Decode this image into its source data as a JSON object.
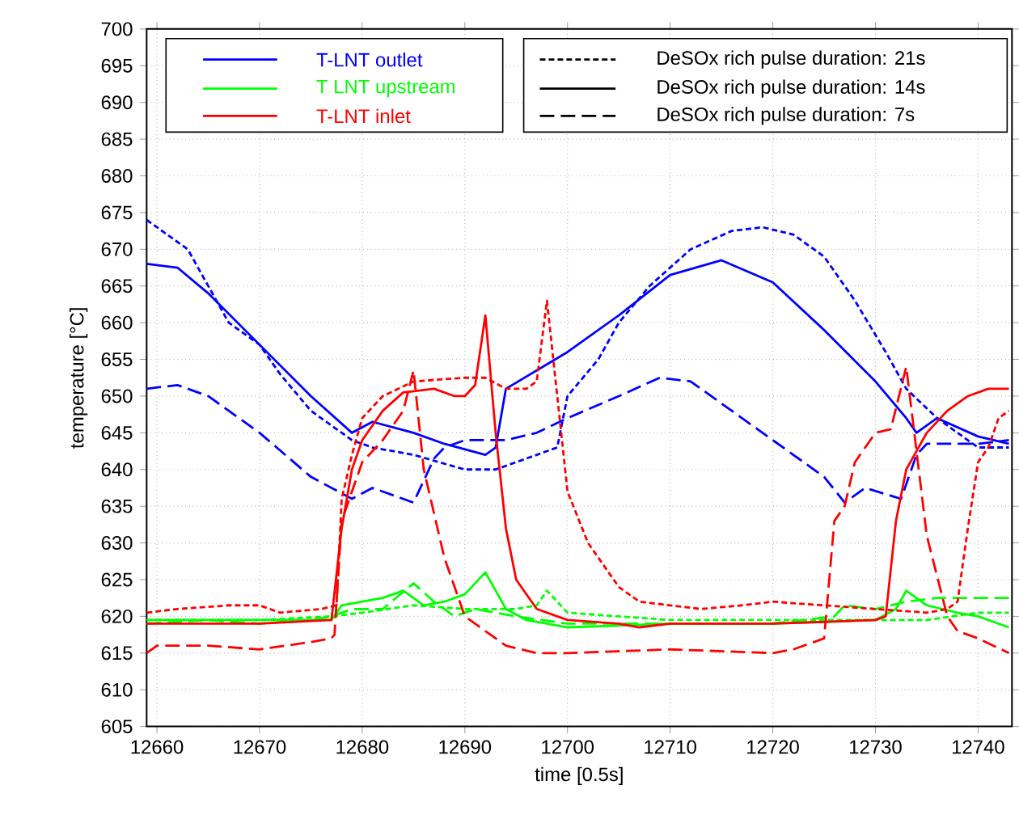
{
  "chart_data": {
    "type": "line",
    "xlabel": "time [0.5s]",
    "ylabel": "temperature [°C]",
    "xlim": [
      12659,
      12743.3
    ],
    "ylim": [
      605,
      700
    ],
    "xticks": [
      12660,
      12670,
      12680,
      12690,
      12700,
      12710,
      12720,
      12730,
      12740
    ],
    "yticks": [
      605,
      610,
      615,
      620,
      625,
      630,
      635,
      640,
      645,
      650,
      655,
      660,
      665,
      670,
      675,
      680,
      685,
      690,
      695,
      700
    ],
    "grid": true,
    "annotations": [
      "T-LNT outlet",
      "T LNT upstream",
      "T-LNT inlet",
      "DeSOx rich pulse duration: 21s",
      "DeSOx rich pulse duration: 14s",
      "DeSOx rich pulse duration: 7s"
    ],
    "series": [
      {
        "color": "#0000ff",
        "line_style": "dotted",
        "x": [
          12659,
          12661,
          12663,
          12665,
          12667,
          12670,
          12672,
          12675,
          12679,
          12681,
          12685,
          12690,
          12693,
          12695,
          12698,
          12699,
          12700,
          12703,
          12705,
          12708,
          12712,
          12716,
          12719,
          12722,
          12725,
          12728,
          12731,
          12733,
          12736,
          12738,
          12740,
          12743
        ],
        "values": [
          674,
          672,
          670,
          665,
          660,
          657,
          653,
          648,
          644,
          643,
          642,
          640,
          640,
          641,
          642.5,
          643,
          650,
          655,
          660,
          665,
          670,
          672.5,
          673,
          672,
          669,
          663,
          656,
          651,
          647,
          645,
          643,
          643
        ]
      },
      {
        "color": "#0000ff",
        "line_style": "solid",
        "x": [
          12659,
          12662,
          12665,
          12670,
          12675,
          12679,
          12681,
          12685,
          12688,
          12692,
          12693,
          12694,
          12700,
          12705,
          12710,
          12715,
          12720,
          12725,
          12730,
          12733,
          12734,
          12736,
          12740,
          12743
        ],
        "values": [
          668,
          667.5,
          664,
          657,
          650,
          645,
          646.5,
          645,
          643.5,
          642,
          643,
          651,
          656,
          661,
          666.5,
          668.5,
          665.5,
          659,
          652,
          647,
          645,
          647,
          644.5,
          643.5
        ]
      },
      {
        "color": "#0000ff",
        "line_style": "dashed",
        "x": [
          12659,
          12662,
          12665,
          12670,
          12675,
          12679,
          12681,
          12685,
          12687,
          12688,
          12690,
          12694,
          12697,
          12700,
          12705,
          12709,
          12712,
          12715,
          12720,
          12725,
          12727,
          12729,
          12732.5,
          12734,
          12735,
          12740,
          12743
        ],
        "values": [
          651,
          651.5,
          650,
          645,
          639,
          636,
          637.5,
          635.5,
          641.5,
          643,
          644,
          644,
          645,
          647,
          650,
          652.5,
          652,
          649,
          644,
          639,
          635.5,
          637.5,
          636,
          642,
          643.5,
          643.5,
          644
        ]
      },
      {
        "color": "#00ff00",
        "line_style": "dotted",
        "x": [
          12659,
          12670,
          12677,
          12680,
          12685,
          12690,
          12695,
          12697,
          12698,
          12700,
          12705,
          12710,
          12720,
          12730,
          12735,
          12740,
          12743
        ],
        "values": [
          619.5,
          619.5,
          620,
          620.5,
          621.5,
          621,
          621,
          621.5,
          623.5,
          620.5,
          620,
          619.5,
          619.5,
          619.5,
          619.5,
          620.5,
          620.5
        ]
      },
      {
        "color": "#00ff00",
        "line_style": "solid",
        "x": [
          12659,
          12665,
          12670,
          12677,
          12678,
          12680,
          12682,
          12684,
          12686,
          12688,
          12690,
          12692,
          12694,
          12696,
          12698,
          12700,
          12710,
          12720,
          12730,
          12732,
          12733,
          12735,
          12738,
          12740,
          12743
        ],
        "values": [
          619.5,
          619.5,
          619.5,
          619.5,
          621.5,
          622,
          622.5,
          623.5,
          621.5,
          622,
          623,
          626,
          621,
          619.5,
          619,
          618.5,
          619,
          619,
          619.5,
          621,
          623.5,
          621.5,
          620.5,
          620,
          618.5
        ]
      },
      {
        "color": "#00ff00",
        "line_style": "dashed",
        "x": [
          12659,
          12665,
          12670,
          12675,
          12677,
          12679,
          12682,
          12685,
          12687,
          12689,
          12691,
          12695,
          12700,
          12710,
          12720,
          12726,
          12727,
          12730,
          12733,
          12736,
          12740,
          12743
        ],
        "values": [
          619,
          619.5,
          619,
          619.5,
          620,
          621,
          621,
          624.5,
          622,
          620,
          621,
          620,
          619,
          619,
          619,
          620,
          621.5,
          621,
          622,
          622.5,
          622.5,
          622.5
        ]
      },
      {
        "color": "#ff0000",
        "line_style": "dotted",
        "x": [
          12659,
          12662,
          12667,
          12670,
          12672,
          12676,
          12677.5,
          12678,
          12679,
          12680,
          12682,
          12685,
          12690,
          12692,
          12694,
          12696,
          12697,
          12698,
          12699,
          12700,
          12702,
          12705,
          12707,
          12710,
          12713,
          12717,
          12720,
          12725,
          12730,
          12735,
          12737,
          12738,
          12739,
          12740,
          12741,
          12742,
          12743
        ],
        "values": [
          620.5,
          621,
          621.5,
          621.5,
          620.5,
          621,
          621.5,
          636,
          642,
          647,
          650,
          652,
          652.5,
          652.5,
          651,
          651,
          652,
          663,
          650,
          637,
          630,
          624,
          622,
          621.5,
          621,
          621.5,
          622,
          621.5,
          621,
          620.5,
          621,
          622,
          632,
          641,
          643,
          647,
          648
        ]
      },
      {
        "color": "#ff0000",
        "line_style": "solid",
        "x": [
          12659,
          12665,
          12670,
          12677,
          12678,
          12679,
          12680,
          12682,
          12684,
          12687,
          12689,
          12690,
          12691,
          12692,
          12693,
          12694,
          12695,
          12697,
          12700,
          12705,
          12707,
          12710,
          12720,
          12730,
          12731,
          12732,
          12733,
          12735,
          12737,
          12739,
          12741,
          12743
        ],
        "values": [
          619,
          619,
          619,
          619.5,
          632,
          640,
          644,
          648,
          650.5,
          651,
          650,
          650,
          651.5,
          661,
          645,
          632,
          625,
          621,
          619.5,
          619,
          618.5,
          619,
          619,
          619.5,
          620,
          633,
          640,
          645,
          648,
          650,
          651,
          651
        ]
      },
      {
        "color": "#ff0000",
        "line_style": "dashed",
        "x": [
          12659,
          12660,
          12665,
          12670,
          12675,
          12677,
          12677.3,
          12678,
          12679,
          12680,
          12682,
          12684,
          12685,
          12686,
          12688,
          12690,
          12692,
          12694,
          12697,
          12700,
          12710,
          12720,
          12722,
          12725,
          12726,
          12727,
          12728,
          12730,
          12731.5,
          12733,
          12735,
          12737,
          12738,
          12740,
          12743
        ],
        "values": [
          615,
          616,
          616,
          615.5,
          616.5,
          617,
          617.5,
          633,
          637,
          641,
          644,
          648,
          653.5,
          640,
          628,
          620,
          618,
          616,
          615,
          615,
          615.5,
          615,
          615.5,
          617,
          633,
          635,
          641,
          645,
          645.5,
          654,
          631,
          620,
          618,
          617,
          615
        ]
      }
    ]
  }
}
